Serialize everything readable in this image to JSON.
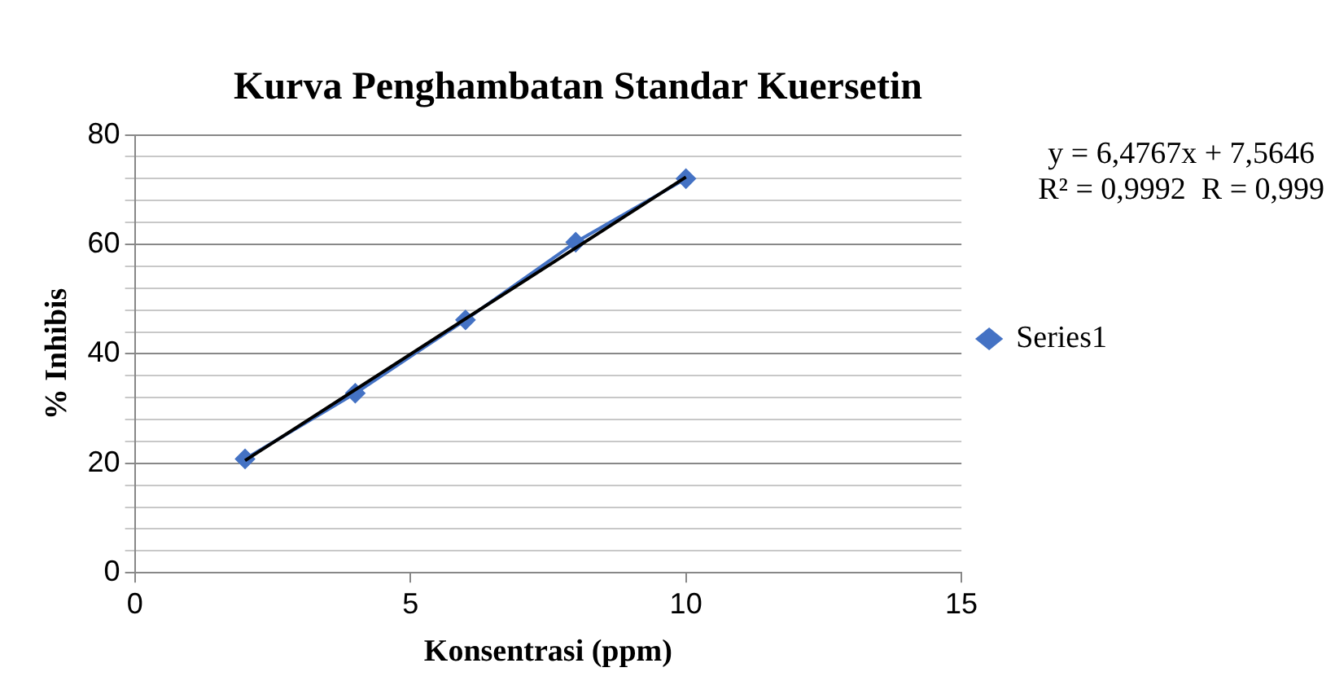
{
  "chart_data": {
    "type": "line",
    "title": "Kurva Penghambatan Standar Kuersetin",
    "xlabel": "Konsentrasi (ppm)",
    "ylabel": "% Inhibis",
    "x": [
      2,
      4,
      6,
      8,
      10
    ],
    "series": [
      {
        "name": "Series1",
        "type": "line",
        "color": "#4472c4",
        "values": [
          20.8,
          32.8,
          46.2,
          60.4,
          72.0
        ],
        "marker": "diamond"
      },
      {
        "type": "line",
        "color": "#000000",
        "x": [
          2,
          10
        ],
        "values": [
          20.5,
          72.3
        ],
        "marker": "none"
      }
    ],
    "xlim": [
      0,
      15
    ],
    "xticks": [
      0,
      5,
      10,
      15
    ],
    "ylim": [
      0,
      80
    ],
    "yticks": [
      0,
      {
        "value": 4,
        "label": null
      },
      {
        "value": 8,
        "label": null
      },
      {
        "value": 12,
        "label": null
      },
      {
        "value": 16,
        "label": null
      },
      20,
      {
        "value": 24,
        "label": null
      },
      {
        "value": 28,
        "label": null
      },
      {
        "value": 32,
        "label": null
      },
      {
        "value": 36,
        "label": null
      },
      40,
      {
        "value": 44,
        "label": null
      },
      {
        "value": 48,
        "label": null
      },
      {
        "value": 52,
        "label": null
      },
      {
        "value": 56,
        "label": null
      },
      60,
      {
        "value": 64,
        "label": null
      },
      {
        "value": 68,
        "label": null
      },
      {
        "value": 72,
        "label": null
      },
      {
        "value": 76,
        "label": null
      },
      80
    ],
    "grid": "y",
    "legend": "right",
    "line_style": "solid",
    "annotations": [
      "y = 6,4767x + 7,5646",
      "R² = 0,9992  R = 0,999"
    ]
  }
}
